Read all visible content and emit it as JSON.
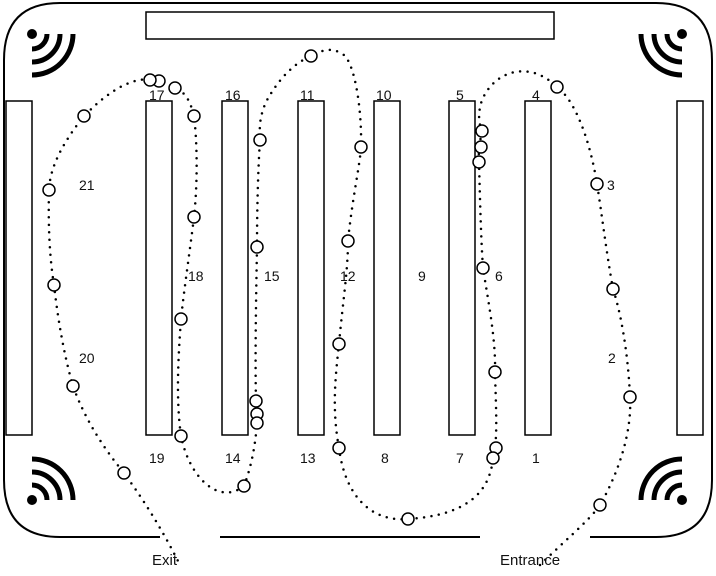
{
  "zones": {
    "z1": "1",
    "z2": "2",
    "z3": "3",
    "z4": "4",
    "z5": "5",
    "z6": "6",
    "z7": "7",
    "z8": "8",
    "z9": "9",
    "z10": "10",
    "z11": "11",
    "z12": "12",
    "z13": "13",
    "z14": "14",
    "z15": "15",
    "z16": "16",
    "z17": "17",
    "z18": "18",
    "z19": "19",
    "z20": "20",
    "z21": "21"
  },
  "doors": {
    "exit": "Exit",
    "entrance": "Entrance"
  },
  "style": {
    "stroke": "#000000",
    "background": "#ffffff"
  }
}
